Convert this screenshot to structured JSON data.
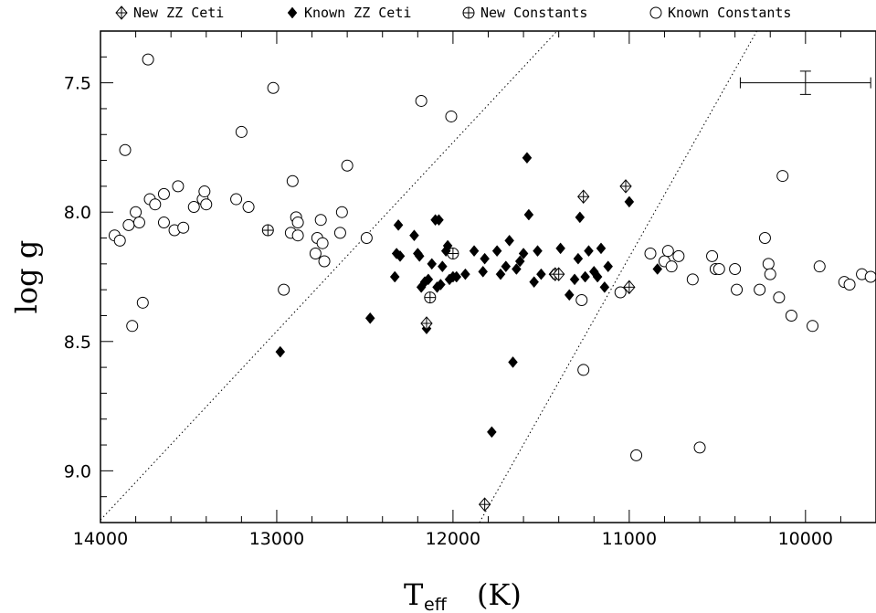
{
  "chart_data": {
    "type": "scatter",
    "xlabel": "T",
    "xlabel_sub": "eff",
    "xlabel_unit": "(K)",
    "ylabel": "log g",
    "xlim": [
      14000,
      9600
    ],
    "ylim": [
      9.2,
      7.3
    ],
    "x_ticks": [
      14000,
      13000,
      12000,
      11000,
      10000
    ],
    "y_ticks": [
      7.5,
      8.0,
      8.5,
      9.0
    ],
    "x_tick_labels": [
      "14000",
      "13000",
      "12000",
      "11000",
      "10000"
    ],
    "y_tick_labels": [
      "7.5",
      "8.0",
      "8.5",
      "9.0"
    ],
    "legend": {
      "placement": "top",
      "entries": [
        {
          "label": "New ZZ Ceti",
          "marker": "diamond-plus"
        },
        {
          "label": "Known ZZ Ceti",
          "marker": "filled-diamond"
        },
        {
          "label": "New Constants",
          "marker": "circle-plus"
        },
        {
          "label": "Known Constants",
          "marker": "open-circle"
        }
      ]
    },
    "error_bar": {
      "x": 10000,
      "y": 7.5,
      "x_err": 370,
      "y_err": 0.045
    },
    "boundary_lines": [
      {
        "x": [
          14000,
          11300
        ],
        "y": [
          9.19,
          7.22
        ]
      },
      {
        "x": [
          11850,
          10210
        ],
        "y": [
          9.2,
          7.22
        ]
      }
    ],
    "series": [
      {
        "name": "New ZZ Ceti",
        "marker": "diamond-plus",
        "points": [
          [
            11820,
            9.13
          ],
          [
            12150,
            8.43
          ],
          [
            11420,
            8.24
          ],
          [
            11400,
            8.24
          ],
          [
            11000,
            8.29
          ],
          [
            11260,
            7.94
          ],
          [
            11020,
            7.9
          ]
        ]
      },
      {
        "name": "Known ZZ Ceti",
        "marker": "filled-diamond",
        "points": [
          [
            12980,
            8.54
          ],
          [
            12470,
            8.41
          ],
          [
            12330,
            8.25
          ],
          [
            12320,
            8.16
          ],
          [
            12310,
            8.05
          ],
          [
            12300,
            8.17
          ],
          [
            12220,
            8.09
          ],
          [
            12200,
            8.16
          ],
          [
            12190,
            8.17
          ],
          [
            12180,
            8.29
          ],
          [
            12160,
            8.27
          ],
          [
            12140,
            8.26
          ],
          [
            12120,
            8.2
          ],
          [
            12100,
            8.03
          ],
          [
            12090,
            8.29
          ],
          [
            12080,
            8.03
          ],
          [
            12070,
            8.28
          ],
          [
            12060,
            8.21
          ],
          [
            12040,
            8.15
          ],
          [
            12030,
            8.13
          ],
          [
            12020,
            8.26
          ],
          [
            12000,
            8.25
          ],
          [
            11980,
            8.25
          ],
          [
            11930,
            8.24
          ],
          [
            11880,
            8.15
          ],
          [
            11830,
            8.23
          ],
          [
            11820,
            8.18
          ],
          [
            11780,
            8.85
          ],
          [
            11750,
            8.15
          ],
          [
            11730,
            8.24
          ],
          [
            11700,
            8.21
          ],
          [
            11680,
            8.11
          ],
          [
            11660,
            8.58
          ],
          [
            11640,
            8.22
          ],
          [
            11620,
            8.19
          ],
          [
            11600,
            8.16
          ],
          [
            11580,
            7.79
          ],
          [
            11570,
            8.01
          ],
          [
            11540,
            8.27
          ],
          [
            11520,
            8.15
          ],
          [
            11500,
            8.24
          ],
          [
            11430,
            8.24
          ],
          [
            11390,
            8.14
          ],
          [
            11340,
            8.32
          ],
          [
            11310,
            8.26
          ],
          [
            11290,
            8.18
          ],
          [
            11280,
            8.02
          ],
          [
            11250,
            8.25
          ],
          [
            11230,
            8.15
          ],
          [
            11200,
            8.23
          ],
          [
            11180,
            8.25
          ],
          [
            11160,
            8.14
          ],
          [
            11140,
            8.29
          ],
          [
            11120,
            8.21
          ],
          [
            11000,
            7.96
          ],
          [
            10840,
            8.22
          ],
          [
            12150,
            8.45
          ]
        ]
      },
      {
        "name": "New Constants",
        "marker": "circle-plus",
        "points": [
          [
            13050,
            8.07
          ],
          [
            12000,
            8.16
          ],
          [
            12130,
            8.33
          ]
        ]
      },
      {
        "name": "Known Constants",
        "marker": "open-circle",
        "points": [
          [
            13730,
            7.41
          ],
          [
            13020,
            7.52
          ],
          [
            12180,
            7.57
          ],
          [
            12010,
            7.63
          ],
          [
            13200,
            7.69
          ],
          [
            13860,
            7.76
          ],
          [
            12600,
            7.82
          ],
          [
            13920,
            8.09
          ],
          [
            13890,
            8.11
          ],
          [
            13840,
            8.05
          ],
          [
            13820,
            8.44
          ],
          [
            13800,
            8.0
          ],
          [
            13780,
            8.04
          ],
          [
            13760,
            8.35
          ],
          [
            13720,
            7.95
          ],
          [
            13690,
            7.97
          ],
          [
            13640,
            7.93
          ],
          [
            13640,
            8.04
          ],
          [
            13580,
            8.07
          ],
          [
            13560,
            7.9
          ],
          [
            13530,
            8.06
          ],
          [
            13470,
            7.98
          ],
          [
            13420,
            7.95
          ],
          [
            13410,
            7.92
          ],
          [
            13400,
            7.97
          ],
          [
            13230,
            7.95
          ],
          [
            13160,
            7.98
          ],
          [
            12960,
            8.3
          ],
          [
            12920,
            8.08
          ],
          [
            12910,
            7.88
          ],
          [
            12890,
            8.02
          ],
          [
            12880,
            8.09
          ],
          [
            12880,
            8.04
          ],
          [
            12780,
            8.16
          ],
          [
            12770,
            8.1
          ],
          [
            12750,
            8.03
          ],
          [
            12740,
            8.12
          ],
          [
            12730,
            8.19
          ],
          [
            12640,
            8.08
          ],
          [
            12630,
            8.0
          ],
          [
            12490,
            8.1
          ],
          [
            10880,
            8.16
          ],
          [
            10800,
            8.19
          ],
          [
            10780,
            8.15
          ],
          [
            10760,
            8.21
          ],
          [
            10720,
            8.17
          ],
          [
            10640,
            8.26
          ],
          [
            11050,
            8.31
          ],
          [
            11270,
            8.34
          ],
          [
            11260,
            8.61
          ],
          [
            10960,
            8.94
          ],
          [
            10600,
            8.91
          ],
          [
            10530,
            8.17
          ],
          [
            10510,
            8.22
          ],
          [
            10490,
            8.22
          ],
          [
            10400,
            8.22
          ],
          [
            10390,
            8.3
          ],
          [
            10260,
            8.3
          ],
          [
            10230,
            8.1
          ],
          [
            10210,
            8.2
          ],
          [
            10200,
            8.24
          ],
          [
            10150,
            8.33
          ],
          [
            10130,
            7.86
          ],
          [
            10080,
            8.4
          ],
          [
            9960,
            8.44
          ],
          [
            9920,
            8.21
          ],
          [
            9780,
            8.27
          ],
          [
            9750,
            8.28
          ],
          [
            9680,
            8.24
          ],
          [
            9630,
            8.25
          ]
        ]
      }
    ]
  }
}
